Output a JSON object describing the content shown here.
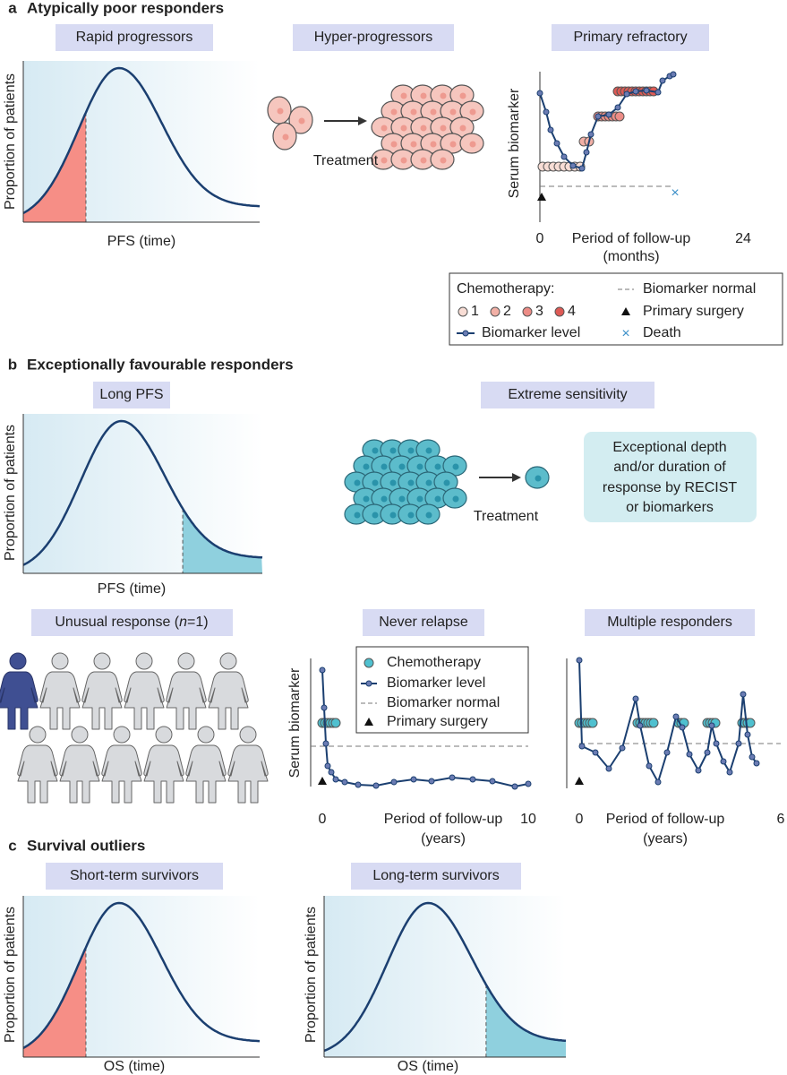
{
  "panel_a": {
    "letter": "a",
    "title": "Atypically poor responders",
    "rapid_progressors": {
      "label": "Rapid progressors",
      "y_axis": "Proportion of patients",
      "x_axis": "PFS (time)"
    },
    "hyper_progressors": {
      "label": "Hyper-progressors",
      "caption": "Treatment"
    },
    "primary_refractory": {
      "label": "Primary refractory",
      "y_axis": "Serum biomarker",
      "x_start": "0",
      "x_end": "24",
      "x_axis": "Period of follow-up",
      "x_unit": "(months)"
    },
    "legend": {
      "chemotherapy": "Chemotherapy:",
      "cycles": [
        "1",
        "2",
        "3",
        "4"
      ],
      "biomarker_level": "Biomarker level",
      "biomarker_normal": "Biomarker normal",
      "primary_surgery": "Primary surgery",
      "death": "Death"
    }
  },
  "panel_b": {
    "letter": "b",
    "title": "Exceptionally favourable responders",
    "long_pfs": {
      "label": "Long PFS",
      "y_axis": "Proportion of patients",
      "x_axis": "PFS (time)"
    },
    "extreme_sensitivity": {
      "label": "Extreme sensitivity",
      "caption": "Treatment",
      "note": [
        "Exceptional depth",
        "and/or duration of",
        "response by RECIST",
        "or biomarkers"
      ]
    },
    "unusual_response": {
      "label": [
        "Unusual response (",
        "n",
        "=1)"
      ]
    },
    "never_relapse": {
      "label": "Never relapse",
      "y_axis": "Serum biomarker",
      "x_start": "0",
      "x_end": "10",
      "x_axis": "Period of follow-up",
      "x_unit": "(years)",
      "legend": [
        "Chemotherapy",
        "Biomarker level",
        "Biomarker normal",
        "Primary surgery"
      ]
    },
    "multiple_responders": {
      "label": "Multiple responders",
      "x_start": "0",
      "x_end": "6",
      "x_axis": "Period of follow-up",
      "x_unit": "(years)"
    }
  },
  "panel_c": {
    "letter": "c",
    "title": "Survival outliers",
    "short_term": {
      "label": "Short-term survivors",
      "y_axis": "Proportion of patients",
      "x_axis": "OS (time)"
    },
    "long_term": {
      "label": "Long-term survivors",
      "y_axis": "Proportion of patients",
      "x_axis": "OS (time)"
    }
  }
}
